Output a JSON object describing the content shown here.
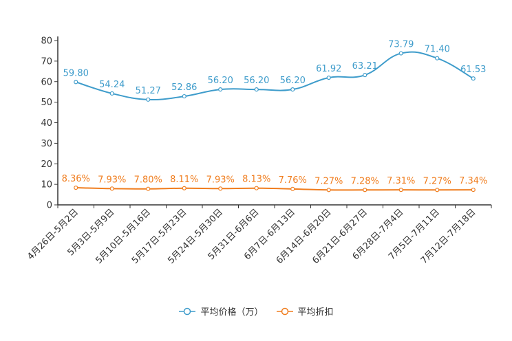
{
  "chart_data": {
    "type": "line",
    "categories": [
      "4月26日-5月2日",
      "5月3日-5月9日",
      "5月10日-5月16日",
      "5月17日-5月23日",
      "5月24日-5月30日",
      "5月31日-6月6日",
      "6月7日-6月13日",
      "6月14日-6月20日",
      "6月21日-6月27日",
      "6月28日-7月4日",
      "7月5日-7月11日",
      "7月12日-7月18日"
    ],
    "series": [
      {
        "name": "平均价格（万）",
        "color": "#3e9ccb",
        "values": [
          59.8,
          54.24,
          51.27,
          52.86,
          56.2,
          56.2,
          56.2,
          61.92,
          63.21,
          73.79,
          71.4,
          61.53
        ],
        "labels": [
          "59.80",
          "54.24",
          "51.27",
          "52.86",
          "56.20",
          "56.20",
          "56.20",
          "61.92",
          "63.21",
          "73.79",
          "71.40",
          "61.53"
        ]
      },
      {
        "name": "平均折扣",
        "color": "#f07d1e",
        "values": [
          8.36,
          7.93,
          7.8,
          8.11,
          7.93,
          8.13,
          7.76,
          7.27,
          7.28,
          7.31,
          7.27,
          7.34
        ],
        "labels": [
          "8.36%",
          "7.93%",
          "7.80%",
          "8.11%",
          "7.93%",
          "8.13%",
          "7.76%",
          "7.27%",
          "7.28%",
          "7.31%",
          "7.27%",
          "7.34%"
        ]
      }
    ],
    "yticks": [
      "0",
      "10",
      "20",
      "30",
      "40",
      "50",
      "60",
      "70",
      "80"
    ],
    "ylim": [
      0,
      80
    ],
    "title": "",
    "xlabel": "",
    "ylabel": "",
    "grid": false,
    "legend_position": "bottom"
  }
}
